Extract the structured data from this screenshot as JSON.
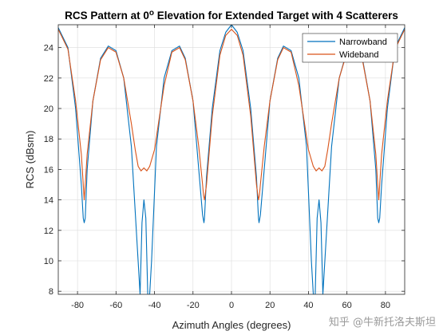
{
  "chart_data": {
    "type": "line",
    "title_main": "RCS Pattern at 0",
    "title_sup": "o",
    "title_rest": " Elevation for Extended Target with 4 Scatterers",
    "xlabel": "Azimuth Angles (degrees)",
    "ylabel": "RCS (dBsm)",
    "xlim": [
      -90,
      90
    ],
    "ylim": [
      7.8,
      25.5
    ],
    "xticks": [
      -80,
      -60,
      -40,
      -20,
      0,
      20,
      40,
      60,
      80
    ],
    "yticks": [
      8,
      10,
      12,
      14,
      16,
      18,
      20,
      22,
      24
    ],
    "grid": true,
    "legend_position": "top-right",
    "series": [
      {
        "name": "Narrowband",
        "color": "#0072BD",
        "x": [
          -90,
          -85,
          -81,
          -78,
          -77,
          -76.5,
          -76,
          -75,
          -72,
          -68,
          -64,
          -60,
          -56,
          -52,
          -49,
          -47.5,
          -46.5,
          -45.5,
          -44.5,
          -43.5,
          -42.5,
          -41.5,
          -39,
          -35,
          -31,
          -27,
          -24,
          -20,
          -17,
          -15,
          -14.3,
          -14,
          -13,
          -10,
          -6,
          -3,
          0,
          3,
          6,
          10,
          13,
          14,
          14.3,
          15,
          17,
          20,
          24,
          27,
          31,
          35,
          39,
          41.5,
          42.5,
          43.5,
          44.5,
          45.5,
          46.5,
          47.5,
          49,
          52,
          56,
          60,
          64,
          68,
          72,
          75,
          76,
          76.5,
          77,
          78,
          81,
          85,
          90
        ],
        "y": [
          25.3,
          24.0,
          20.0,
          15.0,
          12.8,
          12.5,
          12.8,
          16.0,
          20.5,
          23.3,
          24.1,
          23.8,
          22.0,
          17.5,
          11.0,
          7.8,
          12.5,
          14.0,
          12.8,
          7.8,
          7.8,
          10.0,
          17.5,
          22.0,
          23.8,
          24.1,
          23.3,
          20.5,
          16.0,
          13.0,
          12.5,
          12.8,
          15.5,
          20.0,
          23.8,
          25.0,
          25.5,
          25.0,
          23.8,
          20.0,
          15.5,
          12.8,
          12.5,
          13.0,
          16.0,
          20.5,
          23.3,
          24.1,
          23.8,
          22.0,
          17.5,
          10.0,
          7.8,
          7.8,
          12.8,
          14.0,
          12.5,
          7.8,
          11.0,
          17.5,
          22.0,
          23.8,
          24.1,
          23.3,
          20.5,
          16.0,
          12.8,
          12.5,
          12.8,
          15.0,
          20.0,
          24.0,
          25.3
        ]
      },
      {
        "name": "Wideband",
        "color": "#D95319",
        "x": [
          -90,
          -85,
          -81,
          -78,
          -77,
          -76.5,
          -76,
          -75,
          -72,
          -68,
          -64,
          -60,
          -56,
          -52,
          -50,
          -48.5,
          -47,
          -45.5,
          -44,
          -42.5,
          -40,
          -35,
          -31,
          -27,
          -24,
          -20,
          -17,
          -15,
          -14.5,
          -14,
          -13,
          -10,
          -6,
          -3,
          0,
          3,
          6,
          10,
          13,
          14,
          14.5,
          15,
          17,
          20,
          24,
          27,
          31,
          35,
          40,
          42.5,
          44,
          45.5,
          47,
          48.5,
          50,
          52,
          56,
          60,
          64,
          68,
          72,
          75,
          76,
          76.5,
          77,
          78,
          81,
          85,
          90
        ],
        "y": [
          25.2,
          23.9,
          20.5,
          17.0,
          15.0,
          14.0,
          15.0,
          17.0,
          20.5,
          23.2,
          24.0,
          23.7,
          22.0,
          19.0,
          17.3,
          16.2,
          15.9,
          16.1,
          15.9,
          16.2,
          17.3,
          21.5,
          23.7,
          24.0,
          23.2,
          20.5,
          17.5,
          15.0,
          14.3,
          14.0,
          15.0,
          19.5,
          23.5,
          24.8,
          25.2,
          24.8,
          23.5,
          19.5,
          15.0,
          14.0,
          14.3,
          15.0,
          17.5,
          20.5,
          23.2,
          24.0,
          23.7,
          21.5,
          17.3,
          16.2,
          15.9,
          16.1,
          15.9,
          16.2,
          17.3,
          19.0,
          22.0,
          23.7,
          24.0,
          23.2,
          20.5,
          17.0,
          15.0,
          14.0,
          15.0,
          17.0,
          20.5,
          23.9,
          25.2
        ]
      }
    ]
  },
  "watermark_text": "知乎 @牛新托洛夫斯坦"
}
